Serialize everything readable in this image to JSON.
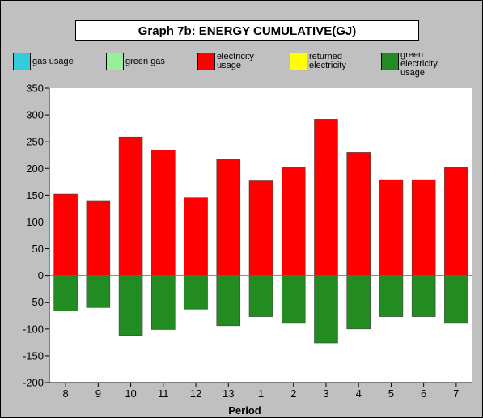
{
  "chart_data": {
    "type": "bar",
    "title": "Graph 7b: ENERGY CUMULATIVE(GJ)",
    "xlabel": "Period",
    "ylabel": "",
    "ylim": [
      -200,
      350
    ],
    "yticks": [
      350,
      300,
      250,
      200,
      150,
      100,
      50,
      0,
      -50,
      -100,
      -150,
      -200
    ],
    "stacked": true,
    "grid": false,
    "legend_position": "top",
    "categories": [
      "8",
      "9",
      "10",
      "11",
      "12",
      "13",
      "1",
      "2",
      "3",
      "4",
      "5",
      "6",
      "7"
    ],
    "series": [
      {
        "name": "gas usage",
        "color": "#33ccdd",
        "values": [
          0,
          0,
          0,
          0,
          0,
          0,
          0,
          0,
          0,
          0,
          0,
          0,
          0
        ]
      },
      {
        "name": "green gas",
        "color": "#99ee99",
        "values": [
          0,
          0,
          0,
          0,
          0,
          0,
          0,
          0,
          0,
          0,
          0,
          0,
          0
        ]
      },
      {
        "name": "electricity usage",
        "color": "#ff0000",
        "values": [
          152,
          140,
          259,
          234,
          145,
          217,
          177,
          203,
          292,
          230,
          179,
          179,
          203
        ]
      },
      {
        "name": "returned electricity",
        "color": "#ffff00",
        "values": [
          0,
          0,
          0,
          0,
          0,
          0,
          0,
          0,
          0,
          0,
          0,
          0,
          0
        ]
      },
      {
        "name": "green electricity usage",
        "color": "#228b22",
        "values": [
          -66,
          -60,
          -112,
          -101,
          -63,
          -94,
          -77,
          -88,
          -126,
          -100,
          -77,
          -77,
          -88
        ]
      }
    ]
  },
  "legend": [
    {
      "label_lines": [
        "gas usage"
      ],
      "color": "#33ccdd"
    },
    {
      "label_lines": [
        "green gas"
      ],
      "color": "#99ee99"
    },
    {
      "label_lines": [
        "electricity",
        "usage"
      ],
      "color": "#ff0000"
    },
    {
      "label_lines": [
        "returned",
        "electricity"
      ],
      "color": "#ffff00"
    },
    {
      "label_lines": [
        "green",
        "electricity",
        "usage"
      ],
      "color": "#228b22"
    }
  ]
}
